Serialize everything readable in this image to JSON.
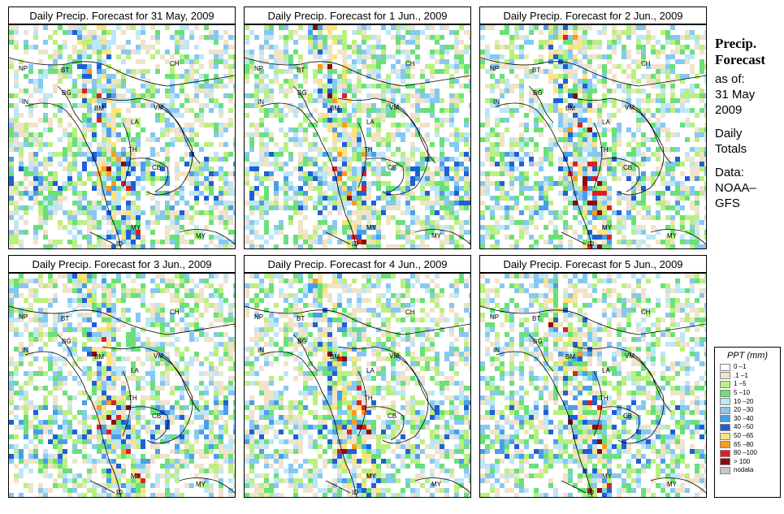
{
  "panels": [
    {
      "title": "Daily Precip. Forecast for  31 May, 2009"
    },
    {
      "title": "Daily Precip. Forecast for  1 Jun., 2009"
    },
    {
      "title": "Daily Precip. Forecast for  2 Jun., 2009"
    },
    {
      "title": "Daily Precip. Forecast for  3 Jun., 2009"
    },
    {
      "title": "Daily Precip. Forecast for  4 Jun., 2009"
    },
    {
      "title": "Daily Precip. Forecast for  5 Jun., 2009"
    }
  ],
  "country_codes": [
    "NP",
    "BT",
    "BG",
    "IN",
    "CH",
    "BM",
    "VM",
    "LA",
    "TH",
    "CB",
    "MY",
    "ID"
  ],
  "side_text": {
    "heading1": "Precip.",
    "heading2": "Forecast",
    "line1": "as of:",
    "line2": "31 May",
    "line3": "2009",
    "line4": "Daily",
    "line5": "Totals",
    "line6": "Data:",
    "line7": "NOAA–",
    "line8": "GFS"
  },
  "legend": {
    "title": "PPT (mm)",
    "items": [
      {
        "label": "0 –1",
        "color": "#ffffff"
      },
      {
        "label": ".1 –1",
        "color": "#efe3c9"
      },
      {
        "label": "1 –5",
        "color": "#b9f07f"
      },
      {
        "label": "5 –10",
        "color": "#6ae07a"
      },
      {
        "label": "10 –20",
        "color": "#bde6f7"
      },
      {
        "label": "20 –30",
        "color": "#86c8f0"
      },
      {
        "label": "30 –40",
        "color": "#4a9ee8"
      },
      {
        "label": "40 –50",
        "color": "#1f5fd6"
      },
      {
        "label": "50 –65",
        "color": "#ffe27a"
      },
      {
        "label": "65 –80",
        "color": "#ff9a1e"
      },
      {
        "label": "80 –100",
        "color": "#e02020"
      },
      {
        "label": "> 100",
        "color": "#8b0c0c"
      },
      {
        "label": "nodata",
        "color": "#c8c8c8"
      }
    ]
  }
}
